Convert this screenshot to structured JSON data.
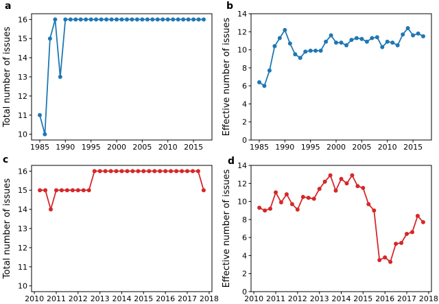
{
  "figure": {
    "background": "#ffffff",
    "line_width": 1.8,
    "marker_radius": 3,
    "spine_color": "#000000"
  },
  "chart_data": [
    {
      "id": "a",
      "panel_label": "a",
      "type": "line",
      "color": "#1f77b4",
      "ylabel": "Total number of issues",
      "xlabel": "",
      "title": "",
      "grid": false,
      "legend": null,
      "x": [
        1985,
        1986,
        1987,
        1988,
        1989,
        1990,
        1991,
        1992,
        1993,
        1994,
        1995,
        1996,
        1997,
        1998,
        1999,
        2000,
        2001,
        2002,
        2003,
        2004,
        2005,
        2006,
        2007,
        2008,
        2009,
        2010,
        2011,
        2012,
        2013,
        2014,
        2015,
        2016,
        2017
      ],
      "y": [
        11,
        10,
        15,
        16,
        13,
        16,
        16,
        16,
        16,
        16,
        16,
        16,
        16,
        16,
        16,
        16,
        16,
        16,
        16,
        16,
        16,
        16,
        16,
        16,
        16,
        16,
        16,
        16,
        16,
        16,
        16,
        16,
        16
      ],
      "xlim": [
        1983.4,
        2018.6
      ],
      "ylim": [
        9.7,
        16.3
      ],
      "xticks": [
        1985,
        1990,
        1995,
        2000,
        2005,
        2010,
        2015
      ],
      "yticks": [
        10,
        11,
        12,
        13,
        14,
        15,
        16
      ]
    },
    {
      "id": "b",
      "panel_label": "b",
      "type": "line",
      "color": "#1f77b4",
      "ylabel": "Effective number of issues",
      "xlabel": "",
      "title": "",
      "grid": false,
      "legend": null,
      "x": [
        1985,
        1986,
        1987,
        1988,
        1989,
        1990,
        1991,
        1992,
        1993,
        1994,
        1995,
        1996,
        1997,
        1998,
        1999,
        2000,
        2001,
        2002,
        2003,
        2004,
        2005,
        2006,
        2007,
        2008,
        2009,
        2010,
        2011,
        2012,
        2013,
        2014,
        2015,
        2016,
        2017
      ],
      "y": [
        6.4,
        6.0,
        7.7,
        10.4,
        11.3,
        12.2,
        10.7,
        9.5,
        9.1,
        9.8,
        9.9,
        9.9,
        9.9,
        10.9,
        11.6,
        10.8,
        10.8,
        10.5,
        11.1,
        11.3,
        11.2,
        10.9,
        11.3,
        11.4,
        10.3,
        10.9,
        10.8,
        10.5,
        11.7,
        12.4,
        11.6,
        11.8,
        11.5
      ],
      "xlim": [
        1983.4,
        2018.6
      ],
      "ylim": [
        0,
        14
      ],
      "xticks": [
        1985,
        1990,
        1995,
        2000,
        2005,
        2010,
        2015
      ],
      "yticks": [
        0,
        2,
        4,
        6,
        8,
        10,
        12,
        14
      ]
    },
    {
      "id": "c",
      "panel_label": "c",
      "type": "line",
      "color": "#d62728",
      "ylabel": "Total number of issues",
      "xlabel": "",
      "title": "",
      "grid": false,
      "legend": null,
      "x": [
        2010.25,
        2010.5,
        2010.75,
        2011.0,
        2011.25,
        2011.5,
        2011.75,
        2012.0,
        2012.25,
        2012.5,
        2012.75,
        2013.0,
        2013.25,
        2013.5,
        2013.75,
        2014.0,
        2014.25,
        2014.5,
        2014.75,
        2015.0,
        2015.25,
        2015.5,
        2015.75,
        2016.0,
        2016.25,
        2016.5,
        2016.75,
        2017.0,
        2017.25,
        2017.5,
        2017.75
      ],
      "y": [
        15,
        15,
        14,
        15,
        15,
        15,
        15,
        15,
        15,
        15,
        16,
        16,
        16,
        16,
        16,
        16,
        16,
        16,
        16,
        16,
        16,
        16,
        16,
        16,
        16,
        16,
        16,
        16,
        16,
        16,
        15
      ],
      "xlim": [
        2009.87,
        2018.13
      ],
      "ylim": [
        9.7,
        16.3
      ],
      "xticks": [
        2010,
        2011,
        2012,
        2013,
        2014,
        2015,
        2016,
        2017,
        2018
      ],
      "yticks": [
        10,
        11,
        12,
        13,
        14,
        15,
        16
      ]
    },
    {
      "id": "d",
      "panel_label": "d",
      "type": "line",
      "color": "#d62728",
      "ylabel": "Effective number of issues",
      "xlabel": "",
      "title": "",
      "grid": false,
      "legend": null,
      "x": [
        2010.25,
        2010.5,
        2010.75,
        2011.0,
        2011.25,
        2011.5,
        2011.75,
        2012.0,
        2012.25,
        2012.5,
        2012.75,
        2013.0,
        2013.25,
        2013.5,
        2013.75,
        2014.0,
        2014.25,
        2014.5,
        2014.75,
        2015.0,
        2015.25,
        2015.5,
        2015.75,
        2016.0,
        2016.25,
        2016.5,
        2016.75,
        2017.0,
        2017.25,
        2017.5,
        2017.75
      ],
      "y": [
        9.3,
        9.0,
        9.2,
        11.0,
        9.9,
        10.8,
        9.7,
        9.1,
        10.5,
        10.4,
        10.3,
        11.4,
        12.2,
        12.9,
        11.2,
        12.5,
        12.0,
        12.9,
        11.7,
        11.5,
        9.7,
        9.0,
        3.5,
        3.8,
        3.3,
        5.3,
        5.4,
        6.4,
        6.6,
        8.4,
        7.7
      ],
      "xlim": [
        2009.87,
        2018.13
      ],
      "ylim": [
        0,
        14
      ],
      "xticks": [
        2010,
        2011,
        2012,
        2013,
        2014,
        2015,
        2016,
        2017,
        2018
      ],
      "yticks": [
        0,
        2,
        4,
        6,
        8,
        10,
        12,
        14
      ]
    }
  ]
}
